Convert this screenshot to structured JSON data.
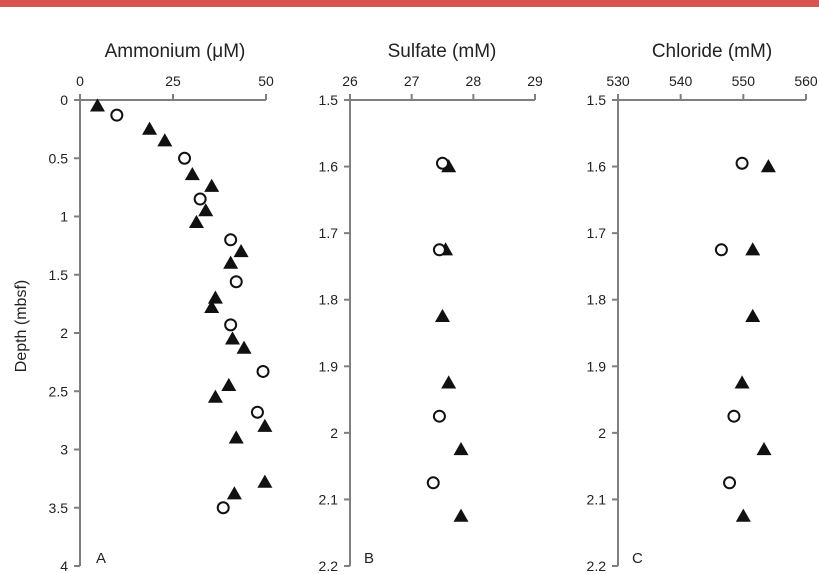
{
  "colors": {
    "accent_bar": "#d9534f",
    "axis": "#7f7f7f",
    "marker": "#111111",
    "text": "#222222"
  },
  "chart_data": [
    {
      "type": "scatter",
      "panel": "A",
      "title": "Ammonium (μM)",
      "ylabel": "Depth (mbsf)",
      "xlim": [
        0,
        50
      ],
      "ylim": [
        4,
        0
      ],
      "y_inverted": true,
      "xticks": [
        "0",
        "25",
        "50"
      ],
      "yticks": [
        "0",
        "0.5",
        "1",
        "1.5",
        "2",
        "2.5",
        "3",
        "3.5",
        "4"
      ],
      "grid": false,
      "series": [
        {
          "marker": "filled-triangle",
          "points": [
            [
              4.7,
              0.05
            ],
            [
              18.7,
              0.25
            ],
            [
              22.8,
              0.35
            ],
            [
              30.2,
              0.64
            ],
            [
              35.4,
              0.74
            ],
            [
              33.8,
              0.95
            ],
            [
              31.3,
              1.05
            ],
            [
              43.3,
              1.3
            ],
            [
              40.5,
              1.4
            ],
            [
              36.4,
              1.7
            ],
            [
              35.4,
              1.78
            ],
            [
              41.0,
              2.05
            ],
            [
              44.1,
              2.13
            ],
            [
              40.0,
              2.45
            ],
            [
              36.4,
              2.55
            ],
            [
              49.7,
              2.8
            ],
            [
              42.0,
              2.9
            ],
            [
              49.7,
              3.28
            ],
            [
              41.5,
              3.38
            ]
          ]
        },
        {
          "marker": "open-circle",
          "points": [
            [
              9.9,
              0.13
            ],
            [
              28.1,
              0.5
            ],
            [
              32.3,
              0.85
            ],
            [
              40.5,
              1.2
            ],
            [
              42.0,
              1.56
            ],
            [
              40.5,
              1.93
            ],
            [
              49.2,
              2.33
            ],
            [
              47.7,
              2.68
            ],
            [
              38.5,
              3.5
            ]
          ]
        }
      ]
    },
    {
      "type": "scatter",
      "panel": "B",
      "title": "Sulfate (mM)",
      "xlim": [
        26,
        29
      ],
      "ylim": [
        2.2,
        1.5
      ],
      "y_inverted": true,
      "xticks": [
        "26",
        "27",
        "28",
        "29"
      ],
      "yticks": [
        "1.5",
        "1.6",
        "1.7",
        "1.8",
        "1.9",
        "2",
        "2.1",
        "2.2"
      ],
      "grid": false,
      "series": [
        {
          "marker": "filled-triangle",
          "points": [
            [
              27.6,
              1.6
            ],
            [
              27.55,
              1.725
            ],
            [
              27.5,
              1.825
            ],
            [
              27.6,
              1.925
            ],
            [
              27.8,
              2.025
            ],
            [
              27.8,
              2.125
            ]
          ]
        },
        {
          "marker": "open-circle",
          "points": [
            [
              27.5,
              1.595
            ],
            [
              27.45,
              1.725
            ],
            [
              27.45,
              1.975
            ],
            [
              27.35,
              2.075
            ]
          ]
        }
      ]
    },
    {
      "type": "scatter",
      "panel": "C",
      "title": "Chloride (mM)",
      "xlim": [
        530,
        560
      ],
      "ylim": [
        2.2,
        1.5
      ],
      "y_inverted": true,
      "xticks": [
        "530",
        "540",
        "550",
        "560"
      ],
      "yticks": [
        "1.5",
        "1.6",
        "1.7",
        "1.8",
        "1.9",
        "2",
        "2.1",
        "2.2"
      ],
      "grid": false,
      "series": [
        {
          "marker": "filled-triangle",
          "points": [
            [
              554.0,
              1.6
            ],
            [
              551.5,
              1.725
            ],
            [
              551.5,
              1.825
            ],
            [
              549.8,
              1.925
            ],
            [
              553.3,
              2.025
            ],
            [
              550.0,
              2.125
            ]
          ]
        },
        {
          "marker": "open-circle",
          "points": [
            [
              549.8,
              1.595
            ],
            [
              546.5,
              1.725
            ],
            [
              548.5,
              1.975
            ],
            [
              547.8,
              2.075
            ]
          ]
        }
      ]
    }
  ]
}
